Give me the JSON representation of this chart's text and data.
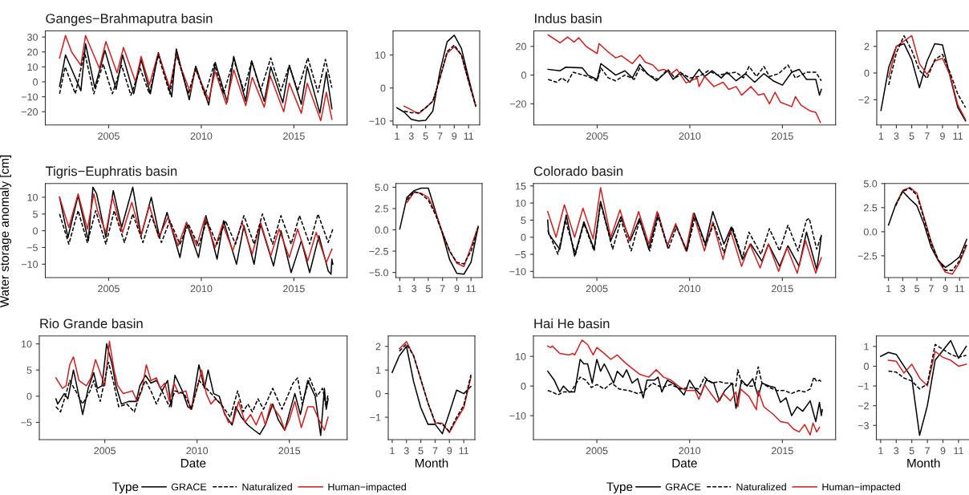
{
  "chart_data": [
    {
      "type": "line",
      "title": "Ganges−Brahmaputra basin",
      "xlim": [
        2001.58,
        2017.87
      ],
      "xticks": [
        2005,
        2010,
        2015
      ],
      "ylim": [
        -28.9,
        34.1
      ],
      "yticks": [
        -20,
        -10,
        0,
        10,
        20,
        30
      ],
      "series": [
        {
          "color": "#000000",
          "line_style": "solid",
          "x": [
            2002.35,
            2002.67,
            2003.5,
            2003.75,
            2004.25,
            2004.8,
            2005.4,
            2005.75,
            2006.35,
            2006.75,
            2007.25,
            2007.68,
            2008.4,
            2008.65,
            2009.35,
            2009.7,
            2010.4,
            2010.75,
            2011.4,
            2011.75,
            2012.4,
            2012.72,
            2013.4,
            2013.75,
            2014.4,
            2014.75,
            2015.4,
            2015.72,
            2016.4,
            2016.75,
            2017.05
          ],
          "values": [
            -3,
            18,
            -6,
            25.5,
            -4,
            21,
            -5,
            18,
            -8,
            15,
            -8,
            19.6,
            -10,
            22,
            -12,
            10.5,
            -15.5,
            13,
            -13.5,
            17,
            -13,
            14,
            -13,
            10,
            -14,
            11,
            -15,
            10,
            -21,
            6.5,
            -18
          ]
        },
        {
          "color": "#000000",
          "line_style": "dashed",
          "x": [
            2002.35,
            2002.65,
            2003.2,
            2003.7,
            2004.2,
            2004.7,
            2005.2,
            2005.7,
            2006.2,
            2006.7,
            2007.2,
            2007.67,
            2008.3,
            2008.65,
            2009.3,
            2009.7,
            2010.2,
            2010.7,
            2011.2,
            2011.75,
            2012.3,
            2012.72,
            2013.2,
            2013.75,
            2014.3,
            2014.75,
            2015.2,
            2015.75,
            2016.3,
            2016.7,
            2017.05
          ],
          "values": [
            -8,
            10,
            -8,
            20,
            -8,
            12,
            -8,
            11,
            -9,
            9,
            -8,
            18,
            -8,
            19,
            -8,
            9,
            -9,
            12,
            -8,
            15,
            -6,
            14,
            -6,
            16,
            -6,
            11,
            -6,
            16,
            -7,
            15,
            -4
          ]
        },
        {
          "color": "#cc2222",
          "line_style": "solid",
          "x": [
            2002.35,
            2002.67,
            2003.0,
            2003.5,
            2003.75,
            2004.5,
            2004.85,
            2005.45,
            2005.8,
            2006.45,
            2006.75,
            2007.2,
            2007.67,
            2008.3,
            2008.65,
            2009.4,
            2009.67,
            2010.4,
            2010.75,
            2011.35,
            2011.75,
            2012.4,
            2012.75,
            2013.4,
            2013.72,
            2014.45,
            2014.75,
            2015.4,
            2015.72,
            2016.45,
            2016.75,
            2017.05
          ],
          "values": [
            16,
            31,
            20,
            11,
            31,
            9,
            27,
            6,
            23,
            0,
            17,
            -2,
            19,
            -4,
            18,
            -7,
            9,
            -12,
            7,
            -15,
            8,
            -16,
            3,
            -17,
            4,
            -20,
            -1,
            -21,
            -1,
            -26,
            -7,
            -25
          ]
        }
      ]
    },
    {
      "type": "line",
      "x": [
        1,
        2,
        3,
        4,
        5,
        6,
        7,
        8,
        9,
        10,
        11,
        12
      ],
      "xlim": [
        0.45,
        12.55
      ],
      "xticks": [
        1,
        3,
        5,
        7,
        9,
        11
      ],
      "ylim": [
        -11.2,
        17.3
      ],
      "yticks": [
        -10,
        0,
        10
      ],
      "series": [
        {
          "color": "#000000",
          "line_style": "solid",
          "values": [
            -6,
            -7.3,
            -9.5,
            -10,
            -9.8,
            -7,
            5,
            14,
            16,
            12,
            3,
            -5.5
          ]
        },
        {
          "color": "#000000",
          "line_style": "dashed",
          "values": [
            null,
            -7,
            -7.5,
            -7.5,
            -6,
            -4,
            3,
            11,
            13,
            10,
            2,
            -5.5
          ]
        },
        {
          "color": "#cc2222",
          "line_style": "solid",
          "values": [
            null,
            -5.5,
            -6.6,
            -7.8,
            -6,
            -4,
            3,
            10.5,
            12.5,
            10,
            2,
            -5.5
          ]
        }
      ]
    },
    {
      "type": "line",
      "title": "Indus basin",
      "xlim": [
        2001.58,
        2017.87
      ],
      "xticks": [
        2005,
        2010,
        2015
      ],
      "ylim": [
        -34.8,
        30.8
      ],
      "yticks": [
        -20,
        0,
        20
      ],
      "series": [
        {
          "color": "#000000",
          "line_style": "solid",
          "x": [
            2002.35,
            2003.0,
            2003.3,
            2004.2,
            2004.5,
            2005.0,
            2005.2,
            2005.5,
            2006.0,
            2006.5,
            2006.9,
            2007.3,
            2007.7,
            2008.2,
            2008.8,
            2009.1,
            2009.5,
            2010.0,
            2010.5,
            2010.8,
            2011.2,
            2011.7,
            2012.0,
            2012.5,
            2013.0,
            2013.5,
            2014.0,
            2014.5,
            2015.0,
            2015.5,
            2015.9,
            2016.3,
            2016.8,
            2017.0,
            2017.1
          ],
          "values": [
            4,
            3,
            5.5,
            5,
            0,
            -3,
            8,
            5,
            0,
            3,
            -2,
            7.5,
            1,
            -4,
            3,
            -3,
            2,
            -5,
            4,
            -1,
            3,
            -2,
            2,
            -4,
            1,
            -5,
            1,
            -4,
            -7,
            2,
            4,
            -3,
            -3,
            -14,
            -10
          ]
        },
        {
          "color": "#000000",
          "line_style": "dashed",
          "x": [
            2002.35,
            2002.8,
            2003.1,
            2003.4,
            2003.7,
            2004.5,
            2005.0,
            2005.2,
            2005.6,
            2006.0,
            2006.5,
            2007.0,
            2007.3,
            2007.8,
            2008.3,
            2008.8,
            2009.2,
            2009.6,
            2010.0,
            2010.5,
            2011.0,
            2011.5,
            2012.0,
            2012.5,
            2012.9,
            2013.2,
            2013.6,
            2014.0,
            2014.3,
            2014.8,
            2015.3,
            2015.7,
            2016.3,
            2016.8,
            2017.1
          ],
          "values": [
            -3,
            -5,
            -2,
            -5,
            2,
            -1,
            -4,
            5,
            -2,
            -4,
            0,
            -3,
            5,
            0,
            -3,
            4,
            -2,
            1,
            -2,
            -1,
            3,
            0,
            1,
            2,
            -2,
            6,
            -1,
            6,
            -1,
            1,
            7,
            -2,
            2,
            2,
            -4
          ]
        },
        {
          "color": "#cc2222",
          "line_style": "solid",
          "x": [
            2002.35,
            2003.0,
            2003.4,
            2003.75,
            2004.0,
            2004.4,
            2005.0,
            2005.1,
            2005.6,
            2006.0,
            2006.3,
            2006.9,
            2007.3,
            2007.6,
            2008.0,
            2008.3,
            2008.6,
            2009.0,
            2009.3,
            2009.8,
            2010.4,
            2010.5,
            2010.8,
            2011.3,
            2011.8,
            2012.1,
            2012.5,
            2012.8,
            2013.3,
            2013.7,
            2014.0,
            2014.3,
            2014.6,
            2014.9,
            2015.5,
            2015.7,
            2016.0,
            2016.5,
            2016.8,
            2017.05
          ],
          "values": [
            28,
            22.5,
            26.5,
            23,
            26,
            20,
            15,
            22,
            16,
            12,
            13.5,
            8,
            14,
            9,
            7,
            3,
            4,
            1,
            4,
            -5.5,
            -2,
            -8,
            -1,
            -8,
            -5,
            -10,
            -8,
            -14,
            -8,
            -14,
            -13,
            -20,
            -12,
            -19,
            -22,
            -15,
            -21,
            -25,
            -26,
            -33
          ]
        }
      ]
    },
    {
      "type": "line",
      "x": [
        1,
        2,
        3,
        4,
        5,
        6,
        7,
        8,
        9,
        10,
        11,
        12
      ],
      "xlim": [
        0.45,
        12.55
      ],
      "xticks": [
        1,
        3,
        5,
        7,
        9,
        11
      ],
      "ylim": [
        -3.9,
        3.16
      ],
      "yticks": [
        -2,
        0,
        2
      ],
      "series": [
        {
          "color": "#000000",
          "line_style": "solid",
          "values": [
            -2.8,
            0.4,
            2.0,
            2.2,
            1.0,
            -1.1,
            0.9,
            2.2,
            2.1,
            -0.3,
            -2.6,
            -3.6
          ]
        },
        {
          "color": "#000000",
          "line_style": "dashed",
          "values": [
            null,
            -0.9,
            1.5,
            2.8,
            1.7,
            0.2,
            -0.4,
            1.0,
            1.4,
            0.0,
            -1.6,
            -2.6
          ]
        },
        {
          "color": "#cc2222",
          "line_style": "solid",
          "values": [
            null,
            -0.3,
            2.0,
            2.4,
            2.8,
            0.7,
            -0.1,
            0.9,
            1.1,
            -0.2,
            -2.4,
            -3.5
          ]
        }
      ]
    },
    {
      "type": "line",
      "title": "Tigris−Euphratis basin",
      "ylabel": "Water storage anomaly [cm]",
      "xlim": [
        2001.58,
        2017.87
      ],
      "xticks": [
        2005,
        2010,
        2015
      ],
      "ylim": [
        -14.0,
        14.1
      ],
      "yticks": [
        -10,
        -5,
        0,
        5,
        10
      ],
      "series": [
        {
          "color": "#000000",
          "line_style": "solid",
          "x": [
            2002.35,
            2002.8,
            2003.35,
            2003.9,
            2004.15,
            2004.35,
            2004.85,
            2005.25,
            2005.7,
            2006.3,
            2006.75,
            2007.3,
            2007.75,
            2008.15,
            2008.85,
            2009.2,
            2009.85,
            2010.25,
            2010.85,
            2011.2,
            2011.9,
            2012.3,
            2012.85,
            2013.2,
            2013.9,
            2014.3,
            2014.85,
            2015.4,
            2015.85,
            2016.35,
            2016.85,
            2017.0,
            2017.05,
            2017.1
          ],
          "values": [
            10,
            -2,
            10.5,
            -3,
            13,
            11,
            -2,
            12,
            1,
            13,
            -1.5,
            10,
            -2,
            5.5,
            -8,
            2.5,
            -8,
            4.5,
            -8.5,
            3,
            -10,
            1.5,
            -10,
            2,
            -10.5,
            0,
            -12.5,
            -3,
            -12.5,
            -1.5,
            -12,
            -13,
            -8.5,
            -10
          ]
        },
        {
          "color": "#000000",
          "line_style": "dashed",
          "x": [
            2002.35,
            2002.85,
            2003.35,
            2003.85,
            2004.3,
            2004.85,
            2005.3,
            2005.85,
            2006.3,
            2006.85,
            2007.3,
            2007.85,
            2008.3,
            2008.85,
            2009.3,
            2009.85,
            2010.3,
            2010.85,
            2011.3,
            2011.85,
            2012.3,
            2012.85,
            2013.3,
            2013.85,
            2014.3,
            2014.85,
            2015.3,
            2015.85,
            2016.3,
            2016.85,
            2017.1
          ],
          "values": [
            5,
            -4,
            6,
            -3.5,
            6,
            -4,
            6,
            -3.5,
            5,
            -3.5,
            4.5,
            -3.5,
            3,
            -4,
            2,
            -4.5,
            3,
            -4,
            3,
            -4,
            4.5,
            -4,
            5,
            -4,
            4.5,
            -4,
            4.5,
            -4,
            5,
            -3.5,
            0.5
          ]
        },
        {
          "color": "#cc2222",
          "line_style": "solid",
          "x": [
            2002.35,
            2002.85,
            2003.35,
            2003.85,
            2004.2,
            2004.4,
            2004.85,
            2005.2,
            2005.75,
            2006.25,
            2006.75,
            2007.2,
            2007.7,
            2008.2,
            2008.75,
            2009.2,
            2009.75,
            2010.2,
            2010.75,
            2011.15,
            2011.7,
            2012.2,
            2012.75,
            2013.2,
            2013.75,
            2014.2,
            2014.75,
            2015.2,
            2015.75,
            2016.2,
            2016.75,
            2017.05
          ],
          "values": [
            10,
            1,
            11,
            0.5,
            11,
            6,
            -0.5,
            10,
            -0.5,
            8.5,
            -1.5,
            7.5,
            -2,
            4,
            -4.5,
            2.5,
            -4.5,
            4,
            -5,
            2,
            -6,
            2.5,
            -7,
            2.5,
            -7.5,
            0.5,
            -8,
            0.5,
            -9,
            -0.5,
            -9.5,
            -5.5
          ]
        }
      ]
    },
    {
      "type": "line",
      "x": [
        1,
        2,
        3,
        4,
        5,
        6,
        7,
        8,
        9,
        10,
        11,
        12
      ],
      "xlim": [
        0.45,
        12.55
      ],
      "xticks": [
        1,
        3,
        5,
        7,
        9,
        11
      ],
      "ylim": [
        -5.6,
        5.43
      ],
      "yticks": [
        {
          "value": -5,
          "label": "−5.0"
        },
        {
          "value": -2.5,
          "label": "−2.5"
        },
        {
          "value": 0,
          "label": "0.0"
        },
        {
          "value": 2.5,
          "label": "2.5"
        },
        {
          "value": 5,
          "label": "5.0"
        }
      ],
      "series": [
        {
          "color": "#000000",
          "line_style": "solid",
          "values": [
            0.1,
            3.8,
            4.6,
            4.9,
            4.9,
            2.2,
            -0.5,
            -3.5,
            -5.1,
            -5.2,
            -3.8,
            0.4
          ]
        },
        {
          "color": "#000000",
          "line_style": "dashed",
          "values": [
            null,
            3.5,
            4.5,
            4.2,
            3.5,
            1.8,
            -0.4,
            -2.5,
            -3.8,
            -4.0,
            -2.5,
            0.3
          ]
        },
        {
          "color": "#cc2222",
          "line_style": "solid",
          "values": [
            null,
            3.2,
            4.4,
            4.3,
            3.8,
            2.0,
            -0.3,
            -2.5,
            -3.9,
            -4.3,
            -2.0,
            0.4
          ]
        }
      ]
    },
    {
      "type": "line",
      "title": "Colorado basin",
      "xlim": [
        2001.58,
        2017.87
      ],
      "xticks": [
        2005,
        2010,
        2015
      ],
      "ylim": [
        -11.8,
        15.7
      ],
      "yticks": [
        -10,
        -5,
        0,
        5,
        10,
        15
      ],
      "series": [
        {
          "color": "#000000",
          "line_style": "solid",
          "x": [
            2002.35,
            2002.4,
            2003.0,
            2003.35,
            2003.8,
            2004.3,
            2004.85,
            2005.2,
            2005.75,
            2006.3,
            2006.8,
            2007.3,
            2007.8,
            2008.3,
            2008.8,
            2009.25,
            2009.85,
            2010.25,
            2010.85,
            2011.25,
            2011.85,
            2012.25,
            2012.85,
            2013.3,
            2013.9,
            2014.25,
            2014.85,
            2015.3,
            2015.9,
            2016.3,
            2016.85,
            2017.0,
            2017.1
          ],
          "values": [
            5,
            1,
            -3.5,
            6.5,
            -5.5,
            4.5,
            -3.5,
            10.5,
            -1,
            6,
            -1,
            5.5,
            -3.5,
            7,
            -2.5,
            3.5,
            -4,
            7,
            -2,
            7.5,
            -2,
            3,
            -6.5,
            -2,
            -7,
            -2,
            -8.5,
            -2.5,
            -8.5,
            1.5,
            -9.5,
            -4,
            0.5
          ]
        },
        {
          "color": "#000000",
          "line_style": "dashed",
          "x": [
            2002.35,
            2002.9,
            2003.3,
            2003.85,
            2004.3,
            2004.85,
            2005.2,
            2005.85,
            2006.3,
            2006.85,
            2007.3,
            2007.85,
            2008.3,
            2008.85,
            2009.3,
            2009.85,
            2010.3,
            2010.85,
            2011.3,
            2011.85,
            2012.3,
            2012.85,
            2013.2,
            2013.85,
            2014.3,
            2014.85,
            2015.3,
            2015.85,
            2016.3,
            2016.45,
            2016.85,
            2017.1
          ],
          "values": [
            2,
            -5,
            5,
            -5,
            4,
            -4,
            10,
            -3.5,
            5,
            -4,
            5,
            -4,
            6,
            -3.5,
            3,
            -4,
            6,
            -2.5,
            4,
            -4.5,
            3,
            -6,
            1.5,
            -5,
            2.5,
            -4,
            3.5,
            -4,
            5,
            5.5,
            -3.5,
            0.5
          ]
        },
        {
          "color": "#cc2222",
          "line_style": "solid",
          "x": [
            2002.35,
            2002.8,
            2003.25,
            2003.8,
            2004.25,
            2004.8,
            2005.2,
            2005.75,
            2006.25,
            2006.75,
            2007.25,
            2007.8,
            2008.25,
            2008.8,
            2009.25,
            2009.8,
            2010.2,
            2010.8,
            2011.25,
            2011.8,
            2012.2,
            2012.8,
            2013.25,
            2013.8,
            2014.25,
            2014.8,
            2015.25,
            2015.8,
            2016.25,
            2016.8,
            2017.1
          ],
          "values": [
            7.5,
            0,
            9.5,
            0,
            8.5,
            -0.5,
            14.5,
            0,
            8,
            -1,
            7.5,
            -2,
            7.5,
            -2.5,
            4,
            -4,
            7,
            -4,
            4.5,
            -6.5,
            2,
            -8.5,
            -2,
            -9,
            -2,
            -10,
            -3,
            -10.5,
            -1,
            -10.5,
            -6
          ]
        }
      ]
    },
    {
      "type": "line",
      "x": [
        1,
        2,
        3,
        4,
        5,
        6,
        7,
        8,
        9,
        10,
        11,
        12
      ],
      "xlim": [
        0.45,
        12.55
      ],
      "xticks": [
        1,
        3,
        5,
        7,
        9,
        11
      ],
      "ylim": [
        -4.76,
        5.0
      ],
      "yticks": [
        {
          "value": -2.5,
          "label": "−2.5"
        },
        {
          "value": 0,
          "label": "0.0"
        },
        {
          "value": 2.5,
          "label": "2.5"
        },
        {
          "value": 5,
          "label": "5.0"
        }
      ],
      "series": [
        {
          "color": "#000000",
          "line_style": "solid",
          "values": [
            0.7,
            2.8,
            4.2,
            3.4,
            2.7,
            0.8,
            -1.6,
            -3.0,
            -3.7,
            -3.2,
            -2.6,
            -0.8
          ]
        },
        {
          "color": "#000000",
          "line_style": "dashed",
          "values": [
            null,
            2.7,
            4.2,
            4.5,
            3.8,
            1.3,
            -1.2,
            -2.9,
            -4.0,
            -4.0,
            -3.0,
            -1.2
          ]
        },
        {
          "color": "#cc2222",
          "line_style": "solid",
          "values": [
            null,
            2.7,
            4.3,
            4.6,
            4.0,
            1.5,
            -1.0,
            -3.0,
            -4.2,
            -4.4,
            -3.2,
            -1.4
          ]
        }
      ]
    },
    {
      "type": "line",
      "title": "Rio Grande basin",
      "xlabel": "Date",
      "legend": "bottom",
      "legend_title": "Type",
      "xlim": [
        2001.45,
        2018.13
      ],
      "xticks": [
        2005,
        2010,
        2015
      ],
      "ylim": [
        -8.3,
        11.5
      ],
      "yticks": [
        -5,
        0,
        5,
        10
      ],
      "series": [
        {
          "name": "GRACE",
          "color": "#000000",
          "line_style": "solid",
          "x": [
            2002.35,
            2002.45,
            2002.8,
            2003.0,
            2003.3,
            2003.6,
            2003.8,
            2004.1,
            2004.4,
            2004.6,
            2004.85,
            2005.1,
            2005.4,
            2005.6,
            2005.9,
            2006.3,
            2006.7,
            2006.9,
            2007.2,
            2007.5,
            2007.8,
            2008.1,
            2008.4,
            2008.6,
            2008.8,
            2009.2,
            2009.5,
            2009.7,
            2010.1,
            2010.4,
            2010.6,
            2010.9,
            2011.2,
            2011.5,
            2011.9,
            2012.1,
            2012.4,
            2012.75,
            2013.1,
            2013.4,
            2013.7,
            2014.1,
            2014.4,
            2014.75,
            2015.1,
            2015.3,
            2015.6,
            2016.0,
            2016.4,
            2016.7,
            2016.9,
            2017.0,
            2017.1
          ],
          "values": [
            -0.5,
            -1.5,
            0.5,
            -0.5,
            5,
            0,
            -3.5,
            1.5,
            4.5,
            1.5,
            2,
            10,
            6,
            2,
            -1.5,
            -1,
            -1,
            2,
            4,
            2.5,
            3,
            1,
            3,
            -2,
            4,
            1,
            -2,
            -2.5,
            6,
            1.5,
            5,
            0.5,
            0,
            -3.5,
            -5.5,
            -2,
            -4,
            -5.5,
            -6.5,
            -7.3,
            -5.5,
            -1.5,
            -4.5,
            -6.5,
            -2,
            0.5,
            -3.5,
            3,
            0,
            -7.5,
            1.5,
            -2.5,
            -0.5
          ]
        },
        {
          "name": "Naturalized",
          "color": "#000000",
          "line_style": "dashed",
          "x": [
            2002.35,
            2002.6,
            2002.9,
            2003.1,
            2003.5,
            2003.8,
            2004.2,
            2004.4,
            2004.75,
            2005.2,
            2005.45,
            2005.75,
            2006.2,
            2006.6,
            2006.9,
            2007.2,
            2007.5,
            2007.8,
            2008.1,
            2008.5,
            2008.8,
            2009.3,
            2009.7,
            2010.1,
            2010.5,
            2010.9,
            2011.4,
            2011.8,
            2012.2,
            2012.5,
            2012.75,
            2013.0,
            2013.3,
            2013.6,
            2014.1,
            2014.6,
            2015.2,
            2015.45,
            2015.7,
            2016.1,
            2016.5,
            2016.8,
            2017.0,
            2017.1
          ],
          "values": [
            -2,
            -3,
            0.5,
            3,
            0.5,
            -1.5,
            1,
            3,
            -1,
            6.5,
            3,
            -2,
            -1.5,
            -3,
            0.5,
            3,
            1,
            -1.5,
            1,
            -2,
            1,
            0.5,
            -2.5,
            3,
            1.5,
            0,
            -2,
            -4,
            1,
            -3,
            -1.5,
            -3,
            -0.5,
            -2.5,
            1.5,
            -2.5,
            2.5,
            3.5,
            -1.5,
            3.5,
            0,
            1.5,
            -2,
            0.5
          ]
        },
        {
          "name": "Human−impacted",
          "color": "#cc2222",
          "line_style": "solid",
          "x": [
            2002.35,
            2002.7,
            2002.9,
            2003.1,
            2003.3,
            2003.6,
            2004.0,
            2004.25,
            2004.5,
            2004.8,
            2005.0,
            2005.25,
            2005.5,
            2005.7,
            2006.0,
            2006.5,
            2006.75,
            2007.0,
            2007.25,
            2007.5,
            2007.8,
            2008.0,
            2008.25,
            2008.5,
            2008.75,
            2009.0,
            2009.4,
            2009.65,
            2010.0,
            2010.25,
            2010.5,
            2010.75,
            2011.0,
            2011.3,
            2011.7,
            2011.95,
            2012.25,
            2012.6,
            2012.9,
            2013.2,
            2013.5,
            2013.7,
            2014.0,
            2014.5,
            2014.75,
            2015.0,
            2015.3,
            2015.65,
            2016.0,
            2016.3,
            2016.6,
            2016.9,
            2017.1
          ],
          "values": [
            3.5,
            1.5,
            2,
            6,
            7.5,
            3,
            2,
            3.5,
            7,
            4,
            2,
            10.5,
            5,
            2,
            0.5,
            1,
            -1,
            1,
            6,
            3,
            3.5,
            1.5,
            2.5,
            -1,
            2.5,
            0.5,
            1,
            -2.5,
            1.5,
            5,
            0.5,
            -1.5,
            -0.5,
            -1.5,
            -5,
            -5,
            -1,
            -5,
            -3.5,
            -5.5,
            -3,
            -5.5,
            -1.5,
            -4,
            -6.5,
            -4.5,
            -1,
            -6,
            -2,
            -2,
            -4.5,
            -6.5,
            -4
          ]
        }
      ]
    },
    {
      "type": "line",
      "xlabel": "Month",
      "x": [
        1,
        2,
        3,
        4,
        5,
        6,
        7,
        8,
        9,
        10,
        11,
        12
      ],
      "xlim": [
        0.45,
        12.55
      ],
      "xticks": [
        1,
        3,
        5,
        7,
        9,
        11
      ],
      "ylim": [
        -1.95,
        2.44
      ],
      "yticks": [
        -1,
        0,
        1,
        2
      ],
      "series": [
        {
          "color": "#000000",
          "line_style": "solid",
          "values": [
            0.9,
            1.6,
            2.0,
            0.5,
            -0.6,
            -1.3,
            -1.3,
            -1.7,
            -0.8,
            0.15,
            0.0,
            0.3
          ]
        },
        {
          "color": "#000000",
          "line_style": "dashed",
          "values": [
            null,
            1.8,
            2.1,
            1.6,
            0.6,
            -0.4,
            -1.2,
            -1.3,
            -1.6,
            -1.0,
            -0.5,
            0.8
          ]
        },
        {
          "color": "#cc2222",
          "line_style": "solid",
          "values": [
            null,
            1.9,
            2.2,
            1.6,
            0.6,
            -0.4,
            -1.25,
            -1.25,
            -1.65,
            -1.1,
            -0.6,
            0.7
          ]
        }
      ]
    },
    {
      "type": "line",
      "title": "Hai He basin",
      "xlabel": "Date",
      "legend": "bottom",
      "legend_title": "Type",
      "xlim": [
        2001.58,
        2017.87
      ],
      "xticks": [
        2005,
        2010,
        2015
      ],
      "ylim": [
        -18.1,
        16.9
      ],
      "yticks": [
        -10,
        0,
        10
      ],
      "series": [
        {
          "name": "GRACE",
          "color": "#000000",
          "line_style": "solid",
          "x": [
            2002.35,
            2002.7,
            2003.0,
            2003.2,
            2003.5,
            2003.8,
            2004.1,
            2004.3,
            2004.5,
            2004.75,
            2005.0,
            2005.2,
            2005.4,
            2005.6,
            2005.9,
            2006.1,
            2006.4,
            2006.6,
            2006.9,
            2007.2,
            2007.5,
            2007.7,
            2008.1,
            2008.3,
            2008.5,
            2008.8,
            2009.2,
            2009.7,
            2010.0,
            2010.3,
            2010.6,
            2010.9,
            2011.3,
            2011.6,
            2011.9,
            2012.3,
            2012.5,
            2012.8,
            2013.1,
            2013.4,
            2013.7,
            2013.9,
            2014.3,
            2014.6,
            2014.9,
            2015.2,
            2015.5,
            2015.8,
            2016.1,
            2016.5,
            2016.8,
            2017.0,
            2017.1,
            2017.15
          ],
          "values": [
            5,
            2,
            -2,
            0,
            -2,
            -2,
            9,
            7.5,
            7.5,
            1,
            9,
            5,
            7.5,
            5,
            1,
            5,
            3,
            5.5,
            1,
            2.5,
            -4,
            2,
            2,
            3,
            -2,
            2,
            0.5,
            -3,
            2,
            -1,
            -3,
            2,
            1,
            -5,
            -1.5,
            1,
            -7.5,
            2,
            0,
            2.5,
            -3.5,
            1,
            0,
            -0.5,
            -5.5,
            -4,
            -10,
            -7,
            -8.5,
            -5,
            -12,
            -5.5,
            -10,
            -8
          ]
        },
        {
          "name": "Naturalized",
          "color": "#000000",
          "line_style": "dashed",
          "x": [
            2002.35,
            2002.6,
            2002.9,
            2003.2,
            2003.6,
            2003.9,
            2004.1,
            2004.4,
            2004.7,
            2005.0,
            2005.4,
            2005.8,
            2006.2,
            2006.7,
            2007.2,
            2007.5,
            2008.0,
            2008.5,
            2009.0,
            2009.5,
            2010.0,
            2010.5,
            2010.8,
            2011.2,
            2011.6,
            2011.9,
            2012.2,
            2012.5,
            2012.6,
            2012.8,
            2013.2,
            2013.5,
            2013.7,
            2013.9,
            2014.3,
            2014.7,
            2015.1,
            2015.5,
            2015.9,
            2016.2,
            2016.5,
            2016.7,
            2016.85,
            2017.0,
            2017.1
          ],
          "values": [
            -1.5,
            -2,
            -3,
            -2,
            -2,
            1,
            3,
            2,
            -0.5,
            0.5,
            -1,
            1,
            -1,
            -1.5,
            -2.5,
            -2,
            1,
            -0.5,
            0.5,
            -1,
            -0.5,
            -1,
            3,
            1,
            1.5,
            1,
            1,
            0,
            5.5,
            1,
            0,
            0,
            6.5,
            1,
            -0.5,
            -1.5,
            -1.5,
            -2.5,
            -1.5,
            -2,
            -1,
            3,
            1.5,
            2,
            1.5
          ]
        },
        {
          "name": "Human−impacted",
          "color": "#cc2222",
          "line_style": "solid",
          "x": [
            2002.35,
            2002.5,
            2002.6,
            2003.0,
            2003.5,
            2003.7,
            2003.8,
            2004.2,
            2004.5,
            2004.8,
            2005.0,
            2005.4,
            2005.75,
            2006.1,
            2006.5,
            2006.9,
            2007.3,
            2007.8,
            2008.2,
            2008.6,
            2009.0,
            2009.5,
            2009.8,
            2010.3,
            2010.5,
            2010.8,
            2011.2,
            2011.5,
            2011.8,
            2012.2,
            2012.5,
            2012.6,
            2012.75,
            2013.2,
            2013.6,
            2013.7,
            2014.0,
            2014.5,
            2014.9,
            2015.3,
            2015.6,
            2015.9,
            2016.2,
            2016.5,
            2016.65,
            2016.85,
            2017.0
          ],
          "values": [
            13.5,
            13,
            13.5,
            11,
            10.5,
            11,
            10.5,
            15.5,
            14,
            10.5,
            13,
            11,
            9,
            10.5,
            8,
            6,
            4,
            3,
            5.5,
            3,
            2,
            -0.5,
            -1.5,
            -1.5,
            -4.5,
            0.5,
            -3,
            -5.5,
            -2.5,
            -5,
            -2,
            -7,
            -1,
            -3.5,
            -8,
            -1.5,
            -7,
            -9.5,
            -12,
            -12.5,
            -14.5,
            -15.5,
            -13,
            -16.5,
            -12.5,
            -15.5,
            -14
          ]
        }
      ]
    },
    {
      "type": "line",
      "xlabel": "Month",
      "x": [
        1,
        2,
        3,
        4,
        5,
        6,
        7,
        8,
        9,
        10,
        11,
        12
      ],
      "xlim": [
        0.45,
        12.55
      ],
      "xticks": [
        1,
        3,
        5,
        7,
        9,
        11
      ],
      "ylim": [
        -3.72,
        1.53
      ],
      "yticks": [
        -3,
        -2,
        -1,
        0,
        1
      ],
      "series": [
        {
          "color": "#000000",
          "line_style": "solid",
          "values": [
            0.5,
            0.7,
            0.6,
            0.0,
            -0.6,
            -3.5,
            -2.0,
            0.3,
            0.8,
            1.3,
            0.4,
            1.0
          ]
        },
        {
          "color": "#000000",
          "line_style": "dashed",
          "values": [
            null,
            -0.25,
            -0.3,
            -0.6,
            -0.75,
            -1.15,
            -0.9,
            1.1,
            0.85,
            0.6,
            0.45,
            0.55
          ]
        },
        {
          "color": "#cc2222",
          "line_style": "solid",
          "values": [
            null,
            0.3,
            0.25,
            -0.35,
            0.1,
            -0.6,
            -1.0,
            0.75,
            0.45,
            0.3,
            0.0,
            0.1
          ]
        }
      ]
    }
  ]
}
